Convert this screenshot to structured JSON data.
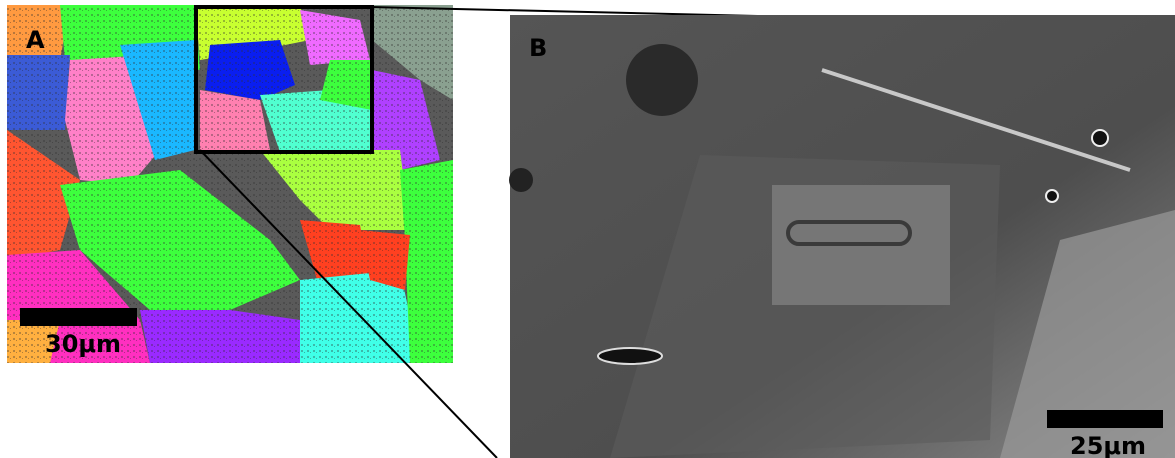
{
  "panels": [
    {
      "label": "A",
      "scale": "30μm"
    },
    {
      "label": "B",
      "scale": "25μm"
    }
  ]
}
